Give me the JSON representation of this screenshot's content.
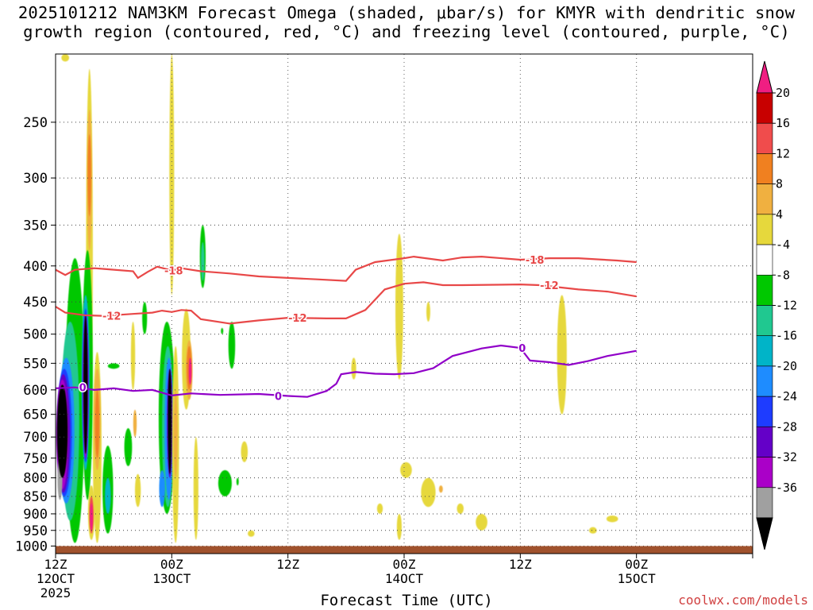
{
  "chart_data": {
    "type": "heatmap",
    "title_line1": "2025101212 NAM3KM Forecast Omega (shaded, μbar/s) for KMYR with dendritic snow",
    "title_line2": "growth region (contoured, red, °C) and freezing level (contoured, purple, °C)",
    "xlabel": "Forecast Time (UTC)",
    "credit": "coolwx.com/models",
    "y_axis": {
      "label": "",
      "scale": "log",
      "direction": "inverted",
      "range": [
        200,
        1025
      ],
      "ticks": [
        250,
        300,
        350,
        400,
        450,
        500,
        550,
        600,
        650,
        700,
        750,
        800,
        850,
        900,
        950,
        1000
      ]
    },
    "x_axis": {
      "range_hours": [
        0,
        72
      ],
      "ticks": [
        {
          "hour": 0,
          "l1": "12Z",
          "l2": "12OCT",
          "l3": "2025"
        },
        {
          "hour": 12,
          "l1": "00Z",
          "l2": "13OCT",
          "l3": ""
        },
        {
          "hour": 24,
          "l1": "12Z",
          "l2": "",
          "l3": ""
        },
        {
          "hour": 36,
          "l1": "00Z",
          "l2": "14OCT",
          "l3": ""
        },
        {
          "hour": 48,
          "l1": "12Z",
          "l2": "",
          "l3": ""
        },
        {
          "hour": 60,
          "l1": "00Z",
          "l2": "15OCT",
          "l3": ""
        }
      ]
    },
    "grid": true,
    "colorbar": {
      "placement": "right",
      "labels": [
        "20",
        "16",
        "12",
        "8",
        "4",
        "-4",
        "-8",
        "-12",
        "-16",
        "-20",
        "-24",
        "-28",
        "-32",
        "-36"
      ],
      "colors": [
        "#c80000",
        "#f04c4c",
        "#f08020",
        "#f0b040",
        "#e6d83c",
        "#ffffff",
        "#00c800",
        "#20c890",
        "#00b4c8",
        "#1e8cff",
        "#1e3cff",
        "#6400c8",
        "#aa00c8",
        "#a0a0a0",
        "#000000"
      ],
      "top_color": "#f01e82",
      "bottom_color": "#000000"
    },
    "contours": [
      {
        "name": "dendritic-top",
        "label": "-18",
        "color": "#e84848",
        "points": [
          [
            0,
            405
          ],
          [
            1,
            412
          ],
          [
            2,
            405
          ],
          [
            4,
            403
          ],
          [
            5,
            404
          ],
          [
            8,
            407
          ],
          [
            8.5,
            416
          ],
          [
            9.5,
            408
          ],
          [
            10.5,
            401
          ],
          [
            12,
            406
          ],
          [
            13,
            403
          ],
          [
            15,
            407
          ],
          [
            18,
            410
          ],
          [
            21,
            414
          ],
          [
            24,
            416
          ],
          [
            27,
            418
          ],
          [
            30,
            420
          ],
          [
            31,
            405
          ],
          [
            33,
            395
          ],
          [
            36,
            390
          ],
          [
            37,
            388
          ],
          [
            40,
            393
          ],
          [
            42,
            389
          ],
          [
            44,
            388
          ],
          [
            48,
            392
          ],
          [
            51,
            390
          ],
          [
            54,
            390
          ],
          [
            58,
            393
          ],
          [
            60,
            395
          ]
        ],
        "label_hours": [
          12.2,
          49.5
        ]
      },
      {
        "name": "dendritic-bottom",
        "label": "-12",
        "color": "#e84848",
        "points": [
          [
            0,
            457
          ],
          [
            1,
            466
          ],
          [
            3,
            470
          ],
          [
            5,
            471
          ],
          [
            8,
            468
          ],
          [
            10,
            466
          ],
          [
            11,
            463
          ],
          [
            12,
            465
          ],
          [
            13,
            462
          ],
          [
            14,
            463
          ],
          [
            15,
            476
          ],
          [
            18,
            483
          ],
          [
            21,
            478
          ],
          [
            24,
            474
          ],
          [
            28,
            475
          ],
          [
            30,
            475
          ],
          [
            32,
            462
          ],
          [
            34,
            432
          ],
          [
            36,
            424
          ],
          [
            38,
            422
          ],
          [
            40,
            426
          ],
          [
            42,
            426
          ],
          [
            48,
            425
          ],
          [
            50,
            426
          ],
          [
            54,
            432
          ],
          [
            57,
            435
          ],
          [
            60,
            442
          ]
        ],
        "label_hours": [
          5.8,
          25,
          51
        ]
      },
      {
        "name": "freezing-level",
        "label": "0",
        "color": "#9000c8",
        "points": [
          [
            0,
            597
          ],
          [
            2,
            595
          ],
          [
            4,
            600
          ],
          [
            6,
            597
          ],
          [
            8,
            602
          ],
          [
            10,
            600
          ],
          [
            12,
            611
          ],
          [
            14,
            607
          ],
          [
            17,
            610
          ],
          [
            21,
            608
          ],
          [
            24,
            612
          ],
          [
            26,
            614
          ],
          [
            28,
            602
          ],
          [
            29,
            588
          ],
          [
            29.5,
            570
          ],
          [
            31,
            566
          ],
          [
            33,
            569
          ],
          [
            35,
            570
          ],
          [
            37,
            568
          ],
          [
            39,
            559
          ],
          [
            41,
            537
          ],
          [
            44,
            524
          ],
          [
            46,
            519
          ],
          [
            48,
            523
          ],
          [
            49,
            545
          ],
          [
            51,
            548
          ],
          [
            53,
            553
          ],
          [
            55,
            546
          ],
          [
            57,
            537
          ],
          [
            60,
            528
          ]
        ],
        "label_hours": [
          2.8,
          23,
          48.2
        ]
      }
    ]
  }
}
